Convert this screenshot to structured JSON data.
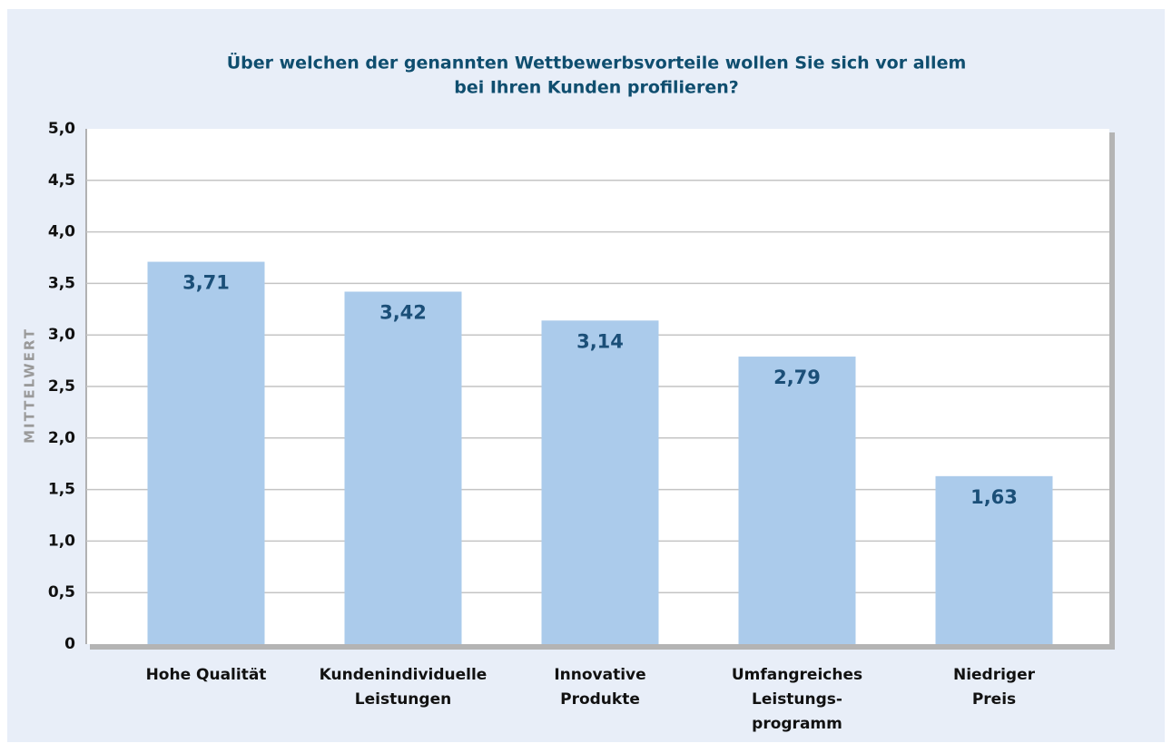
{
  "chart_data": {
    "type": "bar",
    "title": [
      "Über welchen der genannten Wettbewerbsvorteile wollen Sie sich vor allem",
      "bei Ihren Kunden profilieren?"
    ],
    "ylabel": "MITTELWERT",
    "categories": [
      [
        "Hohe Qualität"
      ],
      [
        "Kundenindividuelle",
        "Leistungen"
      ],
      [
        "Innovative",
        "Produkte"
      ],
      [
        "Umfangreiches",
        "Leistungs-",
        "programm"
      ],
      [
        "Niedriger",
        "Preis"
      ]
    ],
    "values": [
      3.71,
      3.42,
      3.14,
      2.79,
      1.63
    ],
    "value_labels": [
      "3,71",
      "3,42",
      "3,14",
      "2,79",
      "1,63"
    ],
    "color": "#abcbeb",
    "ylim": [
      0,
      5
    ],
    "yticks": [
      0,
      {
        "value": 0.5,
        "label": "0,5"
      },
      {
        "value": 1,
        "label": "1,0"
      },
      {
        "value": 1.5,
        "label": "1,5"
      },
      {
        "value": 2,
        "label": "2,0"
      },
      {
        "value": 2.5,
        "label": "2,5"
      },
      {
        "value": 3,
        "label": "3,0"
      },
      {
        "value": 3.5,
        "label": "3,5"
      },
      {
        "value": 4,
        "label": "4,0"
      },
      {
        "value": 4.5,
        "label": "4,5"
      },
      {
        "value": 5,
        "label": "5,0"
      }
    ],
    "grid": true
  }
}
